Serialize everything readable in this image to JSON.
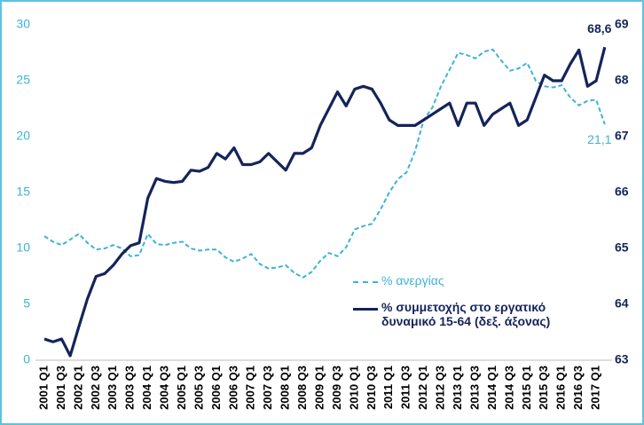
{
  "chart_data": {
    "type": "line",
    "categories": [
      "2001 Q1",
      null,
      "2001 Q3",
      null,
      "2002 Q1",
      null,
      "2002 Q3",
      null,
      "2003 Q1",
      null,
      "2003 Q3",
      null,
      "2004 Q1",
      null,
      "2004 Q3",
      null,
      "2005 Q1",
      null,
      "2005 Q3",
      null,
      "2006 Q1",
      null,
      "2006 Q3",
      null,
      "2007 Q1",
      null,
      "2007 Q3",
      null,
      "2008 Q1",
      null,
      "2008 Q3",
      null,
      "2009 Q1",
      null,
      "2009 Q3",
      null,
      "2010 Q1",
      null,
      "2010 Q3",
      null,
      "2011 Q1",
      null,
      "2011 Q3",
      null,
      "2012 Q1",
      null,
      "2012 Q3",
      null,
      "2013 Q1",
      null,
      "2013 Q3",
      null,
      "2014 Q1",
      null,
      "2014 Q3",
      null,
      "2015 Q1",
      null,
      "2015 Q3",
      null,
      "2016 Q1",
      null,
      "2016 Q3",
      null,
      "2017 Q1",
      null
    ],
    "series": [
      {
        "name": "% ανεργίας",
        "color": "#3db3d9",
        "dashed": true,
        "axis": "y",
        "values": [
          11.1,
          10.6,
          10.3,
          10.8,
          11.3,
          10.5,
          9.9,
          10.0,
          10.3,
          10.0,
          9.3,
          9.4,
          11.3,
          10.4,
          10.3,
          10.5,
          10.6,
          10.0,
          9.8,
          9.9,
          9.9,
          9.2,
          8.8,
          9.1,
          9.5,
          8.6,
          8.2,
          8.3,
          8.5,
          7.8,
          7.4,
          7.9,
          8.9,
          9.6,
          9.3,
          10.1,
          11.7,
          12.0,
          12.2,
          13.5,
          15.0,
          16.2,
          16.8,
          18.7,
          21.5,
          22.6,
          24.5,
          26.0,
          27.5,
          27.3,
          27.0,
          27.6,
          27.8,
          26.8,
          25.9,
          26.1,
          26.6,
          25.0,
          24.5,
          24.4,
          24.6,
          23.5,
          22.8,
          23.2,
          23.3,
          21.1
        ],
        "value_labels": [
          null,
          null,
          null,
          null,
          null,
          null,
          null,
          null,
          null,
          null,
          null,
          null,
          null,
          null,
          null,
          null,
          null,
          null,
          null,
          null,
          null,
          null,
          null,
          null,
          null,
          null,
          null,
          null,
          null,
          null,
          null,
          null,
          null,
          null,
          null,
          null,
          null,
          null,
          null,
          null,
          null,
          null,
          null,
          null,
          null,
          null,
          null,
          null,
          null,
          null,
          null,
          null,
          null,
          null,
          null,
          null,
          null,
          null,
          null,
          null,
          null,
          null,
          null,
          null,
          null,
          "21,1"
        ]
      },
      {
        "name": "% συμμετοχής στο εργατικό δυναμικό 15-64 (δεξ. άξονας)",
        "color": "#14245a",
        "dashed": false,
        "axis": "y2",
        "values": [
          63.38,
          63.33,
          63.38,
          63.08,
          63.6,
          64.1,
          64.5,
          64.55,
          64.7,
          64.9,
          65.05,
          65.1,
          65.9,
          66.25,
          66.2,
          66.18,
          66.2,
          66.4,
          66.38,
          66.45,
          66.7,
          66.6,
          66.8,
          66.5,
          66.5,
          66.55,
          66.7,
          66.55,
          66.4,
          66.7,
          66.7,
          66.8,
          67.2,
          67.5,
          67.8,
          67.55,
          67.85,
          67.9,
          67.85,
          67.6,
          67.3,
          67.2,
          67.2,
          67.2,
          67.3,
          67.4,
          67.5,
          67.6,
          67.2,
          67.6,
          67.6,
          67.2,
          67.4,
          67.5,
          67.6,
          67.2,
          67.3,
          67.7,
          68.1,
          68.0,
          68.0,
          68.3,
          68.55,
          67.9,
          68.0,
          68.6
        ],
        "value_labels": [
          null,
          null,
          null,
          null,
          null,
          null,
          null,
          null,
          null,
          null,
          null,
          null,
          null,
          null,
          null,
          null,
          null,
          null,
          null,
          null,
          null,
          null,
          null,
          null,
          null,
          null,
          null,
          null,
          null,
          null,
          null,
          null,
          null,
          null,
          null,
          null,
          null,
          null,
          null,
          null,
          null,
          null,
          null,
          null,
          null,
          null,
          null,
          null,
          null,
          null,
          null,
          null,
          null,
          null,
          null,
          null,
          null,
          null,
          null,
          null,
          null,
          null,
          null,
          null,
          null,
          "68,6"
        ]
      }
    ],
    "ylim": [
      0,
      30
    ],
    "yticks": [
      0,
      5,
      10,
      15,
      20,
      25,
      30
    ],
    "y2lim": [
      63,
      69
    ],
    "y2ticks": [
      63,
      64,
      65,
      66,
      67,
      68,
      69
    ],
    "legend": "lower right"
  }
}
